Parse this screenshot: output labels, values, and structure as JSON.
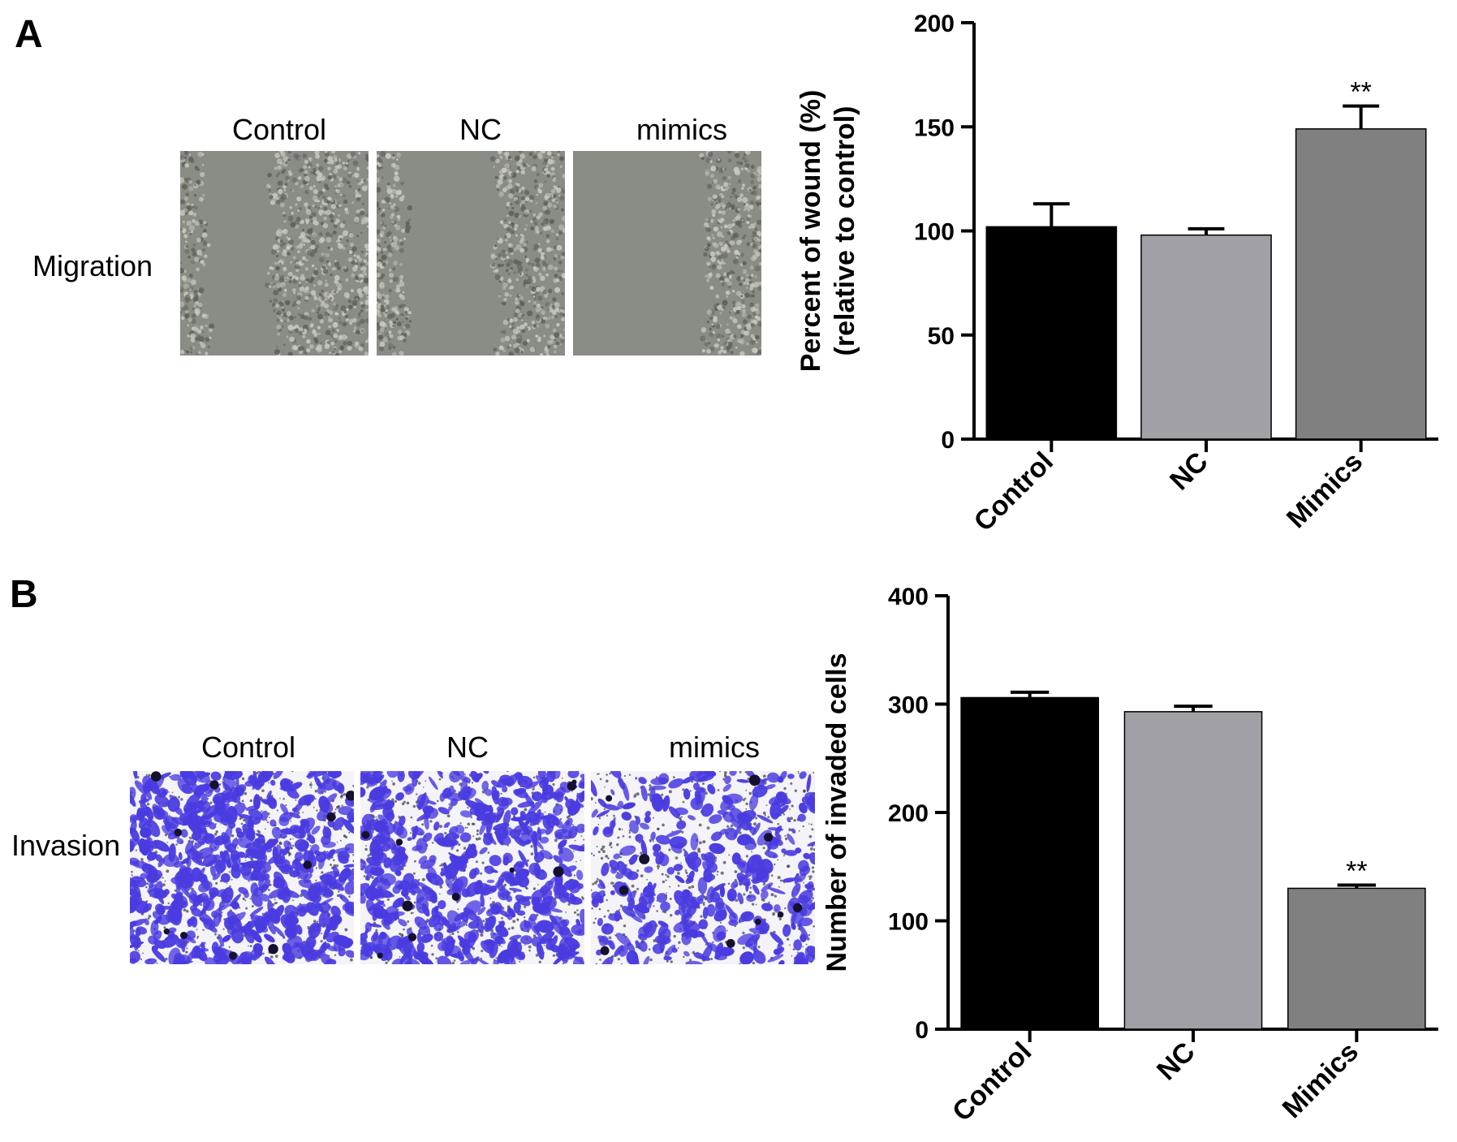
{
  "panels": [
    {
      "letter": "A",
      "row_label": "Migration",
      "columns": [
        "Control",
        "NC",
        "mimics"
      ],
      "micrograph_style": "phase-contrast-wound",
      "image_colors": {
        "background": "#8a8c86",
        "cells": "#c7c9be",
        "cell_dark": "#5f625c"
      }
    },
    {
      "letter": "B",
      "row_label": "Invasion",
      "columns": [
        "Control",
        "NC",
        "mimics"
      ],
      "micrograph_style": "crystal-violet-transwell",
      "image_colors": {
        "background": "#f3f3f8",
        "cells": "#4a3be0",
        "cell_dark": "#15102e"
      }
    }
  ],
  "chart_data": [
    {
      "type": "bar",
      "categories": [
        "Control",
        "NC",
        "Mimics"
      ],
      "values": [
        102,
        98,
        149
      ],
      "errors": [
        11,
        3,
        11
      ],
      "significance": [
        "",
        "",
        "**"
      ],
      "ylabel_lines": [
        "Percent of wound (%)",
        "(relative to control)"
      ],
      "ylim": [
        0,
        200
      ],
      "yticks": [
        0,
        50,
        100,
        150,
        200
      ],
      "colors": [
        "#000000",
        "#a0a0a6",
        "#808080"
      ],
      "grid": false,
      "legend": "none"
    },
    {
      "type": "bar",
      "categories": [
        "Control",
        "NC",
        "Mimics"
      ],
      "values": [
        306,
        293,
        130
      ],
      "errors": [
        5,
        5,
        3
      ],
      "significance": [
        "",
        "",
        "**"
      ],
      "ylabel_lines": [
        "Number of invaded cells"
      ],
      "ylim": [
        0,
        400
      ],
      "yticks": [
        0,
        100,
        200,
        300,
        400
      ],
      "colors": [
        "#000000",
        "#a0a0a6",
        "#808080"
      ],
      "grid": false,
      "legend": "none"
    }
  ]
}
